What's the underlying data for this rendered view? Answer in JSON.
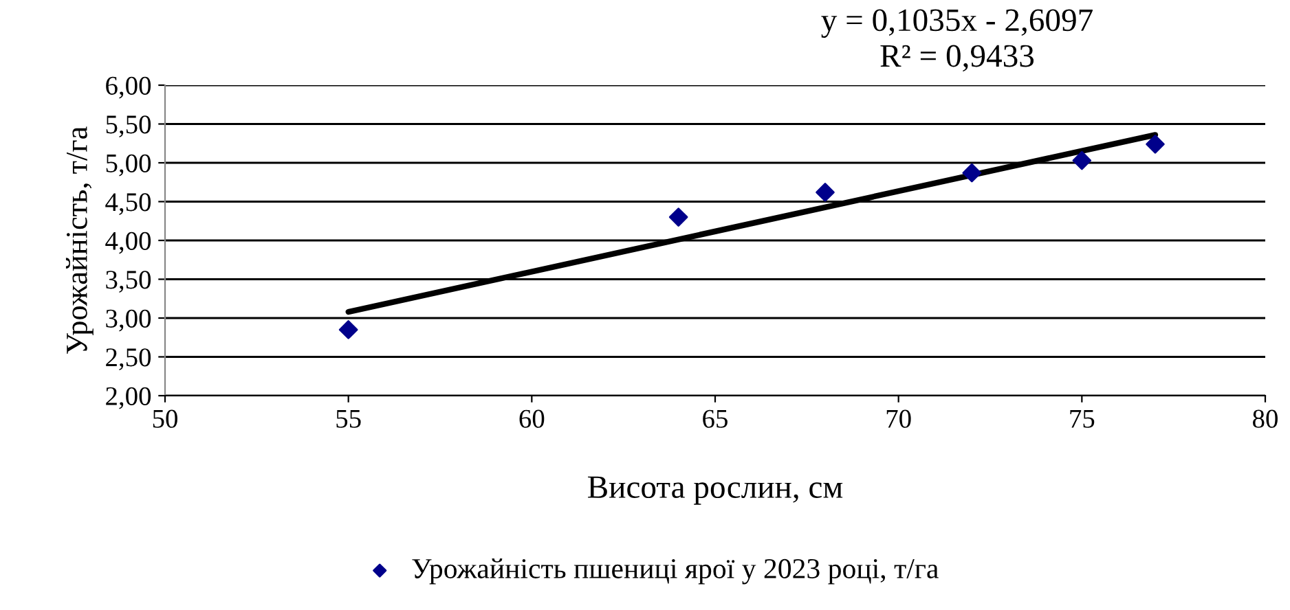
{
  "chart_data": {
    "type": "scatter",
    "xlabel": "Висота рослин, см",
    "ylabel": "Урожайність, т/га",
    "xlim": [
      50,
      80
    ],
    "xticks": [
      50,
      55,
      60,
      65,
      70,
      75,
      80
    ],
    "ylim": [
      2,
      6
    ],
    "yticks": [
      {
        "value": 2,
        "label": "2,00"
      },
      {
        "value": 2.5,
        "label": "2,50"
      },
      {
        "value": 3,
        "label": "3,00"
      },
      {
        "value": 3.5,
        "label": "3,50"
      },
      {
        "value": 4,
        "label": "4,00"
      },
      {
        "value": 4.5,
        "label": "4,50"
      },
      {
        "value": 5,
        "label": "5,00"
      },
      {
        "value": 5.5,
        "label": "5,50"
      },
      {
        "value": 6,
        "label": "6,00"
      }
    ],
    "grid": "y",
    "legend": "bottom",
    "annotations": [
      "y = 0,1035x - 2,6097",
      "R² = 0,9433"
    ],
    "series": [
      {
        "marker": "diamond",
        "name": "Урожайність пшениці ярої у 2023 році, т/га",
        "color": "#00008b",
        "x": [
          55,
          64,
          68,
          72,
          75,
          77
        ],
        "values": [
          2.85,
          4.3,
          4.62,
          4.87,
          5.03,
          5.24
        ]
      },
      {
        "type": "line",
        "marker": "none",
        "color": "#000000",
        "line_style": "solid",
        "x": [
          55,
          77
        ],
        "values": [
          3.08,
          5.36
        ]
      }
    ]
  }
}
